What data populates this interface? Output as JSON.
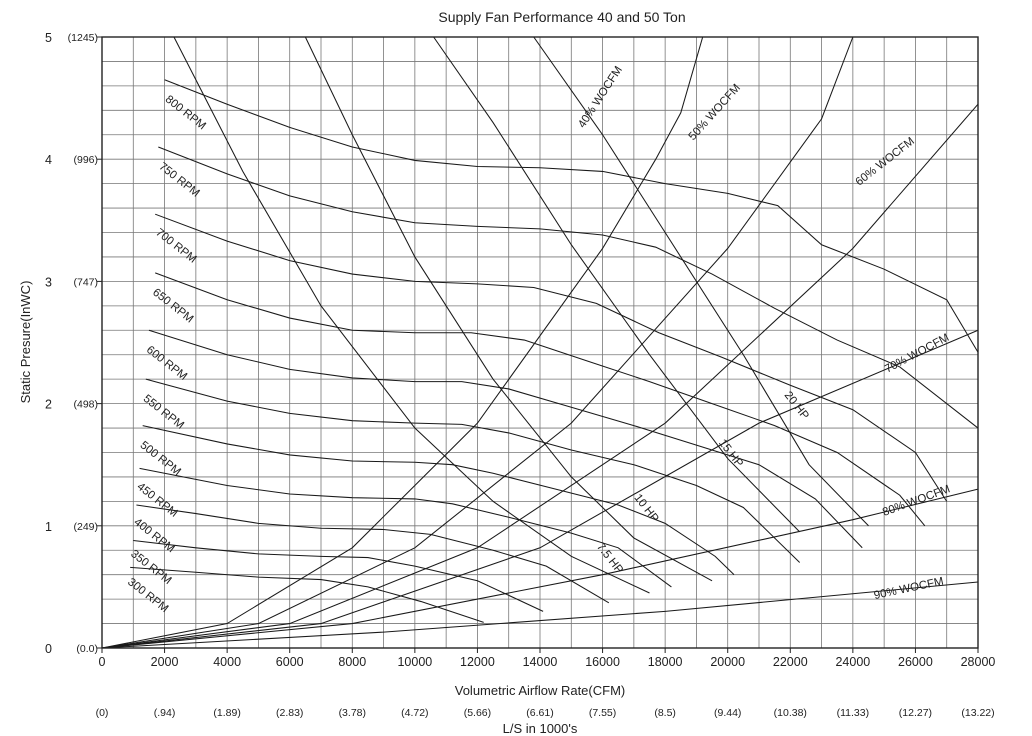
{
  "chart_data": {
    "type": "line",
    "title": "Supply Fan Performance  40 and 50 Ton",
    "xlabel": "Volumetric Airflow Rate(CFM)",
    "xlabel2": "L/S in 1000's",
    "ylabel": "Static Presure(InWC)",
    "xlim": [
      0,
      28000
    ],
    "ylim": [
      0,
      5
    ],
    "grid": true,
    "x_ticks": [
      {
        "value": 0,
        "label": "0"
      },
      {
        "value": 2000,
        "label": "2000"
      },
      {
        "value": 4000,
        "label": "4000"
      },
      {
        "value": 6000,
        "label": "6000"
      },
      {
        "value": 8000,
        "label": "8000"
      },
      {
        "value": 10000,
        "label": "10000"
      },
      {
        "value": 12000,
        "label": "12000"
      },
      {
        "value": 14000,
        "label": "14000"
      },
      {
        "value": 16000,
        "label": "16000"
      },
      {
        "value": 18000,
        "label": "18000"
      },
      {
        "value": 20000,
        "label": "20000"
      },
      {
        "value": 22000,
        "label": "22000"
      },
      {
        "value": 24000,
        "label": "24000"
      },
      {
        "value": 26000,
        "label": "26000"
      },
      {
        "value": 28000,
        "label": "28000"
      }
    ],
    "ls_ticks": [
      {
        "value": 0,
        "label": "(0)"
      },
      {
        "value": 2000,
        "label": "(.94)"
      },
      {
        "value": 4000,
        "label": "(1.89)"
      },
      {
        "value": 6000,
        "label": "(2.83)"
      },
      {
        "value": 8000,
        "label": "(3.78)"
      },
      {
        "value": 10000,
        "label": "(4.72)"
      },
      {
        "value": 12000,
        "label": "(5.66)"
      },
      {
        "value": 14000,
        "label": "(6.61)"
      },
      {
        "value": 16000,
        "label": "(7.55)"
      },
      {
        "value": 18000,
        "label": "(8.5)"
      },
      {
        "value": 20000,
        "label": "(9.44)"
      },
      {
        "value": 22000,
        "label": "(10.38)"
      },
      {
        "value": 24000,
        "label": "(11.33)"
      },
      {
        "value": 26000,
        "label": "(12.27)"
      },
      {
        "value": 28000,
        "label": "(13.22)"
      }
    ],
    "y_ticks": [
      {
        "value": 0,
        "label": "0",
        "pa": "(0.0)"
      },
      {
        "value": 1,
        "label": "1",
        "pa": "(249)"
      },
      {
        "value": 2,
        "label": "2",
        "pa": "(498)"
      },
      {
        "value": 3,
        "label": "3",
        "pa": "(747)"
      },
      {
        "value": 4,
        "label": "4",
        "pa": "(996)"
      },
      {
        "value": 5,
        "label": "5",
        "pa": "(1245)"
      }
    ],
    "rpm_curves": [
      {
        "name": "800 RPM",
        "points": [
          [
            2000,
            4.65
          ],
          [
            4000,
            4.45
          ],
          [
            6000,
            4.26
          ],
          [
            8000,
            4.1
          ],
          [
            10000,
            3.99
          ],
          [
            12000,
            3.94
          ],
          [
            14000,
            3.93
          ],
          [
            16000,
            3.9
          ],
          [
            18000,
            3.8
          ],
          [
            20000,
            3.72
          ],
          [
            21600,
            3.62
          ],
          [
            23000,
            3.3
          ],
          [
            25000,
            3.1
          ],
          [
            27000,
            2.85
          ],
          [
            28000,
            2.42
          ]
        ]
      },
      {
        "name": "750 RPM",
        "points": [
          [
            1800,
            4.1
          ],
          [
            4000,
            3.88
          ],
          [
            6000,
            3.7
          ],
          [
            8000,
            3.57
          ],
          [
            10000,
            3.48
          ],
          [
            12000,
            3.45
          ],
          [
            14000,
            3.43
          ],
          [
            16000,
            3.38
          ],
          [
            17700,
            3.28
          ],
          [
            19500,
            3.06
          ],
          [
            21500,
            2.78
          ],
          [
            23500,
            2.52
          ],
          [
            25500,
            2.3
          ],
          [
            28000,
            1.8
          ]
        ]
      },
      {
        "name": "700 RPM",
        "points": [
          [
            1700,
            3.55
          ],
          [
            4000,
            3.33
          ],
          [
            6000,
            3.17
          ],
          [
            8000,
            3.06
          ],
          [
            10000,
            3.0
          ],
          [
            12000,
            2.98
          ],
          [
            13800,
            2.95
          ],
          [
            15800,
            2.82
          ],
          [
            17800,
            2.58
          ],
          [
            19800,
            2.38
          ],
          [
            22000,
            2.15
          ],
          [
            24000,
            1.95
          ],
          [
            26000,
            1.6
          ],
          [
            27000,
            1.2
          ]
        ]
      },
      {
        "name": "650 RPM",
        "points": [
          [
            1700,
            3.07
          ],
          [
            4000,
            2.85
          ],
          [
            6000,
            2.7
          ],
          [
            8000,
            2.6
          ],
          [
            10000,
            2.58
          ],
          [
            11800,
            2.58
          ],
          [
            13500,
            2.52
          ],
          [
            15500,
            2.35
          ],
          [
            17500,
            2.18
          ],
          [
            19500,
            2.0
          ],
          [
            21500,
            1.82
          ],
          [
            23500,
            1.6
          ],
          [
            25500,
            1.25
          ],
          [
            26300,
            1.0
          ]
        ]
      },
      {
        "name": "600 RPM",
        "points": [
          [
            1500,
            2.6
          ],
          [
            4000,
            2.4
          ],
          [
            6000,
            2.28
          ],
          [
            8000,
            2.21
          ],
          [
            10000,
            2.18
          ],
          [
            11500,
            2.18
          ],
          [
            13000,
            2.12
          ],
          [
            15000,
            1.97
          ],
          [
            17000,
            1.82
          ],
          [
            19000,
            1.66
          ],
          [
            21000,
            1.5
          ],
          [
            22800,
            1.22
          ],
          [
            24300,
            0.82
          ]
        ]
      },
      {
        "name": "550 RPM",
        "points": [
          [
            1400,
            2.2
          ],
          [
            4000,
            2.02
          ],
          [
            6000,
            1.92
          ],
          [
            8000,
            1.86
          ],
          [
            10000,
            1.84
          ],
          [
            11500,
            1.83
          ],
          [
            13000,
            1.76
          ],
          [
            15000,
            1.62
          ],
          [
            17000,
            1.5
          ],
          [
            19000,
            1.33
          ],
          [
            20500,
            1.15
          ],
          [
            22300,
            0.7
          ]
        ]
      },
      {
        "name": "500 RPM",
        "points": [
          [
            1300,
            1.82
          ],
          [
            4000,
            1.67
          ],
          [
            6000,
            1.58
          ],
          [
            8000,
            1.53
          ],
          [
            10000,
            1.52
          ],
          [
            11200,
            1.5
          ],
          [
            12500,
            1.43
          ],
          [
            14500,
            1.3
          ],
          [
            16500,
            1.17
          ],
          [
            18000,
            1.02
          ],
          [
            19600,
            0.75
          ],
          [
            20200,
            0.6
          ]
        ]
      },
      {
        "name": "450 RPM",
        "points": [
          [
            1200,
            1.47
          ],
          [
            4000,
            1.33
          ],
          [
            6000,
            1.26
          ],
          [
            8000,
            1.23
          ],
          [
            10000,
            1.22
          ],
          [
            11200,
            1.18
          ],
          [
            13000,
            1.07
          ],
          [
            15000,
            0.94
          ],
          [
            16500,
            0.82
          ],
          [
            18200,
            0.5
          ]
        ]
      },
      {
        "name": "400 RPM",
        "points": [
          [
            1100,
            1.17
          ],
          [
            3000,
            1.1
          ],
          [
            5000,
            1.02
          ],
          [
            7000,
            0.98
          ],
          [
            9000,
            0.97
          ],
          [
            10500,
            0.93
          ],
          [
            12500,
            0.8
          ],
          [
            14200,
            0.67
          ],
          [
            16200,
            0.37
          ]
        ]
      },
      {
        "name": "350 RPM",
        "points": [
          [
            1000,
            0.88
          ],
          [
            3000,
            0.82
          ],
          [
            5000,
            0.77
          ],
          [
            7000,
            0.75
          ],
          [
            8500,
            0.74
          ],
          [
            10000,
            0.67
          ],
          [
            12000,
            0.55
          ],
          [
            14100,
            0.3
          ]
        ]
      },
      {
        "name": "300 RPM",
        "points": [
          [
            900,
            0.66
          ],
          [
            3000,
            0.62
          ],
          [
            5000,
            0.58
          ],
          [
            7000,
            0.56
          ],
          [
            8500,
            0.5
          ],
          [
            10200,
            0.38
          ],
          [
            12200,
            0.21
          ]
        ]
      }
    ],
    "hp_curves": [
      {
        "name": "7.5 HP",
        "points": [
          [
            2300,
            5
          ],
          [
            4500,
            3.9
          ],
          [
            7000,
            2.8
          ],
          [
            10000,
            1.8
          ],
          [
            12500,
            1.2
          ],
          [
            15000,
            0.75
          ],
          [
            17500,
            0.45
          ]
        ]
      },
      {
        "name": "10 HP",
        "points": [
          [
            6500,
            5
          ],
          [
            8000,
            4.2
          ],
          [
            10000,
            3.2
          ],
          [
            12500,
            2.2
          ],
          [
            15000,
            1.4
          ],
          [
            17000,
            0.9
          ],
          [
            19500,
            0.55
          ]
        ]
      },
      {
        "name": "15 HP",
        "points": [
          [
            10600,
            5
          ],
          [
            12500,
            4.3
          ],
          [
            15000,
            3.3
          ],
          [
            17500,
            2.4
          ],
          [
            20000,
            1.55
          ],
          [
            22300,
            0.95
          ]
        ]
      },
      {
        "name": "20 HP",
        "points": [
          [
            13800,
            5
          ],
          [
            16000,
            4.2
          ],
          [
            18000,
            3.4
          ],
          [
            20500,
            2.4
          ],
          [
            22600,
            1.5
          ],
          [
            24500,
            1.0
          ]
        ]
      }
    ],
    "woc_curves": [
      {
        "name": "40% WOCFM",
        "points": [
          [
            0,
            0
          ],
          [
            4000,
            0.2
          ],
          [
            8000,
            0.82
          ],
          [
            12000,
            1.84
          ],
          [
            16000,
            3.27
          ],
          [
            17700,
            4.0
          ],
          [
            18500,
            4.38
          ],
          [
            19200,
            5.0
          ]
        ]
      },
      {
        "name": "50% WOCFM",
        "points": [
          [
            0,
            0
          ],
          [
            5000,
            0.2
          ],
          [
            10000,
            0.82
          ],
          [
            15000,
            1.84
          ],
          [
            20000,
            3.27
          ],
          [
            23000,
            4.33
          ],
          [
            24000,
            5.0
          ]
        ]
      },
      {
        "name": "60% WOCFM",
        "points": [
          [
            0,
            0
          ],
          [
            6000,
            0.2
          ],
          [
            12000,
            0.82
          ],
          [
            18000,
            1.84
          ],
          [
            24000,
            3.27
          ],
          [
            28000,
            4.45
          ]
        ]
      },
      {
        "name": "70% WOCFM",
        "points": [
          [
            0,
            0
          ],
          [
            7000,
            0.2
          ],
          [
            14000,
            0.82
          ],
          [
            21000,
            1.84
          ],
          [
            28000,
            2.6
          ]
        ]
      },
      {
        "name": "80% WOCFM",
        "points": [
          [
            0,
            0
          ],
          [
            8000,
            0.2
          ],
          [
            16000,
            0.6
          ],
          [
            24000,
            1.05
          ],
          [
            28000,
            1.3
          ]
        ]
      },
      {
        "name": "90% WOCFM",
        "points": [
          [
            0,
            0
          ],
          [
            9000,
            0.13
          ],
          [
            18000,
            0.3
          ],
          [
            28000,
            0.54
          ]
        ]
      }
    ]
  }
}
